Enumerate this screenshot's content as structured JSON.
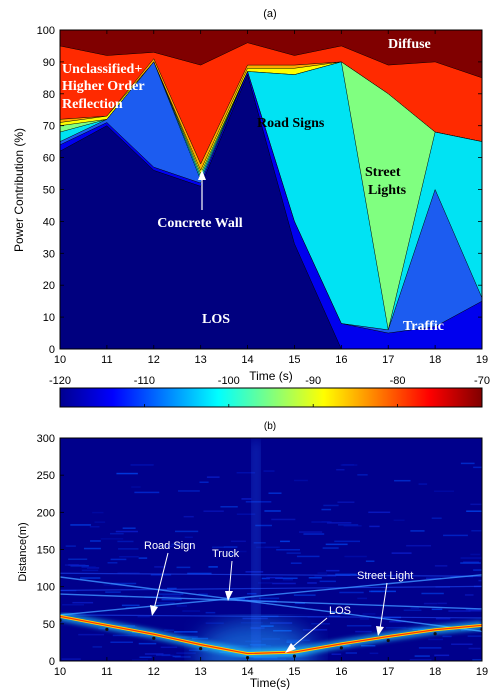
{
  "chart_data": [
    {
      "type": "area",
      "panel_label": "(a)",
      "xlabel": "Time (s)",
      "ylabel": "Power Contribution (%)",
      "xlim": [
        10,
        19
      ],
      "ylim": [
        0,
        100
      ],
      "x_ticks": [
        10,
        11,
        12,
        13,
        14,
        15,
        16,
        17,
        18,
        19
      ],
      "y_ticks": [
        0,
        10,
        20,
        30,
        40,
        50,
        60,
        70,
        80,
        90,
        100
      ],
      "grid": false,
      "stacked_cumulative_series": [
        {
          "label_key": "los",
          "color": "#00007f",
          "points": [
            [
              10,
              62
            ],
            [
              11,
              70
            ],
            [
              12,
              56
            ],
            [
              13,
              51
            ],
            [
              14,
              86
            ],
            [
              15,
              33
            ],
            [
              16,
              0
            ],
            [
              17,
              0
            ],
            [
              18,
              0
            ],
            [
              19,
              0
            ]
          ]
        },
        {
          "color": "#0000ee",
          "points": [
            [
              10,
              64
            ],
            [
              11,
              71
            ],
            [
              12,
              57
            ],
            [
              13,
              52
            ],
            [
              14,
              87
            ],
            [
              15,
              40
            ],
            [
              16,
              8
            ],
            [
              17,
              5
            ],
            [
              18,
              7
            ],
            [
              19,
              15
            ]
          ]
        },
        {
          "label_key": "traffic",
          "color": "#1c5cf0",
          "points": [
            [
              10,
              65
            ],
            [
              11,
              72
            ],
            [
              12,
              90
            ],
            [
              13,
              53
            ],
            [
              14,
              87
            ],
            [
              15,
              40
            ],
            [
              16,
              8
            ],
            [
              17,
              6
            ],
            [
              18,
              50
            ],
            [
              19,
              16
            ]
          ]
        },
        {
          "label_key": "road_signs",
          "color": "#00e3f3",
          "points": [
            [
              10,
              68
            ],
            [
              11,
              72
            ],
            [
              12,
              90
            ],
            [
              13,
              54
            ],
            [
              14,
              87
            ],
            [
              15,
              86
            ],
            [
              16,
              90
            ],
            [
              17,
              6
            ],
            [
              18,
              68
            ],
            [
              19,
              65
            ]
          ]
        },
        {
          "label_key": "street_lights",
          "color": "#80ff80",
          "points": [
            [
              10,
              70
            ],
            [
              11,
              72
            ],
            [
              12,
              90
            ],
            [
              13,
              55
            ],
            [
              14,
              87
            ],
            [
              15,
              86
            ],
            [
              16,
              90
            ],
            [
              17,
              80
            ],
            [
              18,
              68
            ],
            [
              19,
              65
            ]
          ]
        },
        {
          "color": "#ffff00",
          "points": [
            [
              10,
              71
            ],
            [
              11,
              73
            ],
            [
              12,
              90
            ],
            [
              13,
              56
            ],
            [
              14,
              88
            ],
            [
              15,
              88
            ],
            [
              16,
              90
            ],
            [
              17,
              80
            ],
            [
              18,
              68
            ],
            [
              19,
              65
            ]
          ]
        },
        {
          "label_key": "concrete_wall",
          "color": "#ffaa00",
          "points": [
            [
              10,
              72
            ],
            [
              11,
              73
            ],
            [
              12,
              91
            ],
            [
              13,
              58
            ],
            [
              14,
              89
            ],
            [
              15,
              89
            ],
            [
              16,
              90
            ],
            [
              17,
              80
            ],
            [
              18,
              68
            ],
            [
              19,
              65
            ]
          ]
        },
        {
          "label_key": "unclassified",
          "color": "#ff2a00",
          "points": [
            [
              10,
              95
            ],
            [
              11,
              92
            ],
            [
              12,
              93
            ],
            [
              13,
              89
            ],
            [
              14,
              96
            ],
            [
              15,
              92
            ],
            [
              16,
              95
            ],
            [
              17,
              89
            ],
            [
              18,
              90
            ],
            [
              19,
              85
            ]
          ]
        },
        {
          "label_key": "diffuse",
          "color": "#800000",
          "points": [
            [
              10,
              100
            ],
            [
              11,
              100
            ],
            [
              12,
              100
            ],
            [
              13,
              100
            ],
            [
              14,
              100
            ],
            [
              15,
              100
            ],
            [
              16,
              100
            ],
            [
              17,
              100
            ],
            [
              18,
              100
            ],
            [
              19,
              100
            ]
          ]
        }
      ],
      "annotations": {
        "unclassified": [
          "Unclassified+",
          "Higher Order",
          "Reflection"
        ],
        "diffuse": "Diffuse",
        "road_signs": "Road Signs",
        "street_lights": [
          "Street",
          "Lights"
        ],
        "concrete_wall": "Concrete Wall",
        "los": "LOS",
        "traffic": "Traffic"
      }
    },
    {
      "type": "heatmap",
      "panel_label": "(b)",
      "xlabel": "Time(s)",
      "ylabel": "Distance(m)",
      "xlim": [
        10,
        19
      ],
      "ylim": [
        0,
        300
      ],
      "x_ticks": [
        10,
        11,
        12,
        13,
        14,
        15,
        16,
        17,
        18,
        19
      ],
      "y_ticks": [
        0,
        50,
        100,
        150,
        200,
        250,
        300
      ],
      "colorbar": {
        "range": [
          -120,
          -70
        ],
        "ticks": [
          -120,
          -110,
          -100,
          -90,
          -80,
          -70
        ]
      },
      "los_path": {
        "x": [
          10,
          11,
          12,
          13,
          14,
          15,
          16,
          17,
          18,
          19
        ],
        "y": [
          60,
          48,
          36,
          22,
          10,
          12,
          23,
          33,
          42,
          48
        ]
      },
      "track_lines": [
        {
          "label_key": "road_sign",
          "from": [
            10,
            113
          ],
          "to": [
            19,
            40
          ]
        },
        {
          "label_key": "truck",
          "from": [
            10,
            62
          ],
          "to": [
            19,
            116
          ]
        },
        {
          "label_key": "street_light",
          "from": [
            10,
            90
          ],
          "to": [
            19,
            70
          ]
        }
      ],
      "annotations": {
        "road_sign": "Road Sign",
        "truck": "Truck",
        "street_light": "Street Light",
        "los": "LOS"
      }
    }
  ]
}
